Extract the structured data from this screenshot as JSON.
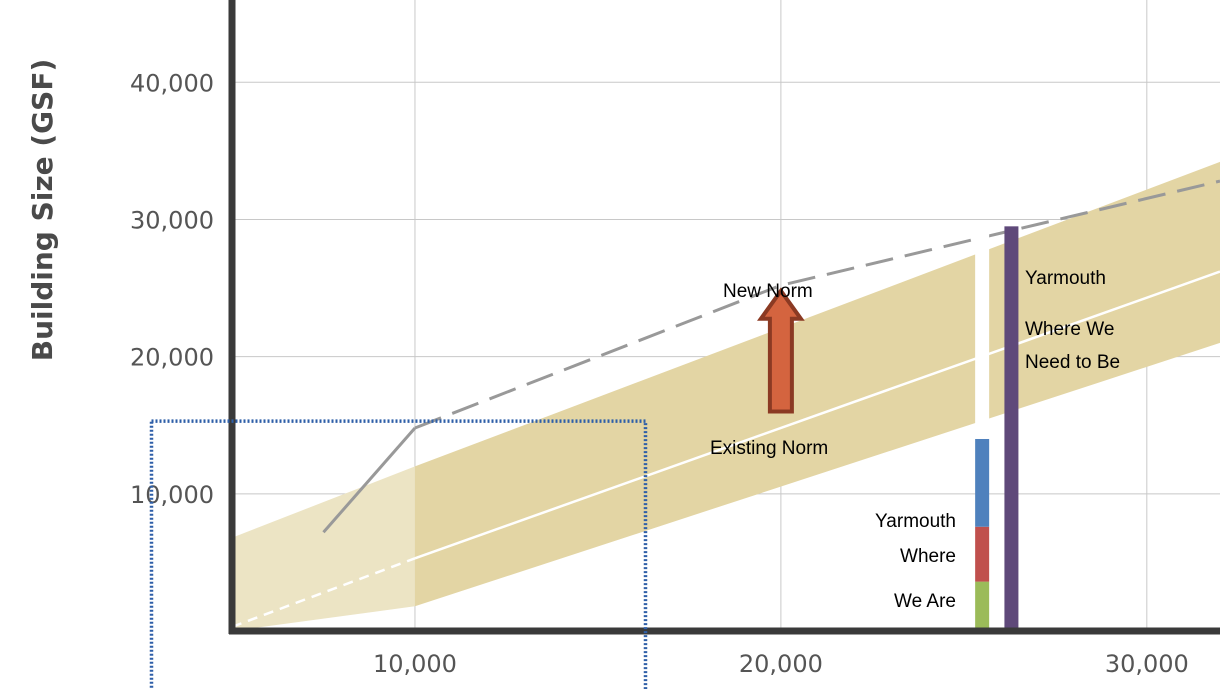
{
  "chart_data": {
    "type": "area",
    "ylabel": "Building Size (GSF)",
    "xlim": [
      5000,
      32000
    ],
    "ylim": [
      0,
      46000
    ],
    "x_ticks": [
      10000,
      20000,
      30000
    ],
    "x_tick_labels": [
      "10,000",
      "20,000",
      "30,000"
    ],
    "y_ticks": [
      10000,
      20000,
      30000,
      40000
    ],
    "y_tick_labels": [
      "10,000",
      "20,000",
      "30,000",
      "40,000"
    ],
    "grid": true,
    "series": [
      {
        "role": "range-band",
        "style": "filled band",
        "x": [
          5000,
          10000,
          32000
        ],
        "lower": [
          0,
          1800,
          21000
        ],
        "upper": [
          6800,
          12000,
          34200
        ]
      },
      {
        "role": "median",
        "style": "solid white line, dashed below 10,000",
        "x": [
          5000,
          10000,
          32000
        ],
        "y": [
          300,
          5300,
          26200
        ]
      },
      {
        "name": "New Norm",
        "style": "dashed gray line",
        "x": [
          7500,
          10000,
          20000,
          32000
        ],
        "y": [
          7200,
          14800,
          25200,
          32800
        ]
      }
    ],
    "stacked_bars": [
      {
        "x": 25500,
        "segments": [
          {
            "from": 0,
            "to": 3600,
            "color": "#9bbb59"
          },
          {
            "from": 3600,
            "to": 7600,
            "color": "#c0504d"
          },
          {
            "from": 7600,
            "to": 14000,
            "color": "#4f81bd"
          }
        ]
      },
      {
        "x": 26300,
        "segments": [
          {
            "from": 0,
            "to": 29500,
            "color": "#5f497a"
          }
        ]
      }
    ],
    "arrow": {
      "x": 20000,
      "from": 16000,
      "to": 24800
    },
    "highlight_box": {
      "x": [
        2800,
        16300
      ],
      "y": [
        -5500,
        15300
      ]
    },
    "annotations": {
      "new_norm": "New Norm",
      "existing_norm": "Existing Norm",
      "where_we_are": [
        "Yarmouth",
        "Where",
        "We Are"
      ],
      "need_to_be": [
        "Yarmouth",
        "Where We",
        "Need to Be"
      ]
    },
    "colors": {
      "band": "#e3d5a4",
      "band_light": "#ece4c4",
      "arrow_fill": "#d4643f",
      "arrow_stroke": "#8b3a23",
      "new_norm_line": "#999999",
      "axis": "#3a3a3a",
      "grid": "#c8c8c8",
      "highlight_box": "#2e5fa8"
    }
  }
}
